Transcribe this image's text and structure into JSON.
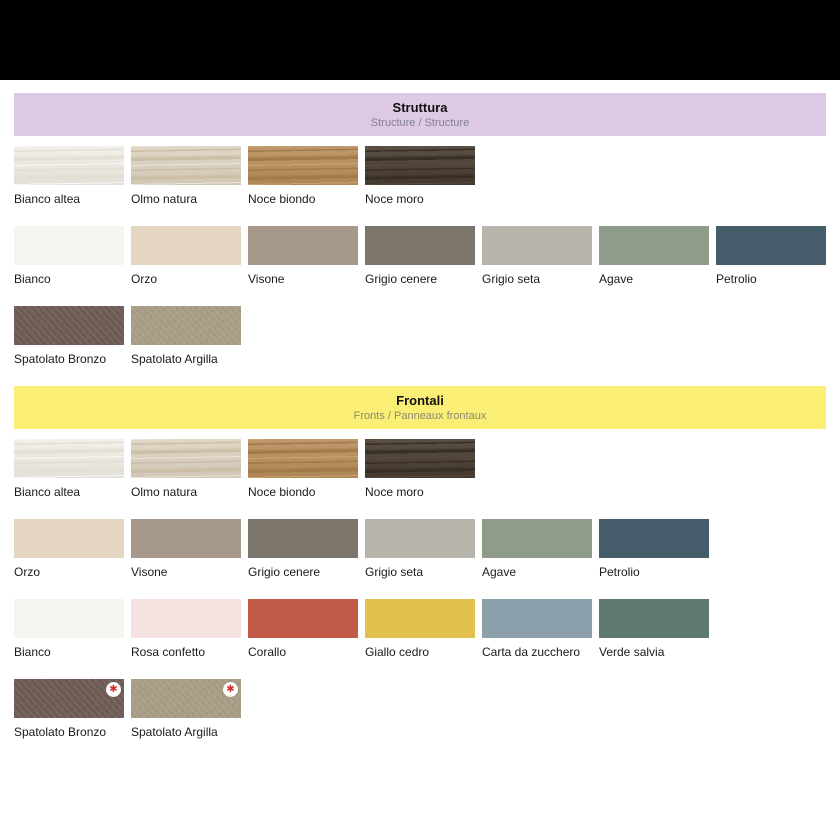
{
  "page": {
    "background": "#ffffff",
    "top_bar_color": "#000000"
  },
  "badge": {
    "glyph": "✱",
    "color": "#d42b26",
    "circle_color": "#ffffff",
    "meaning": "star-marker"
  },
  "sections": [
    {
      "id": "struttura",
      "header": {
        "title": "Struttura",
        "subtitle": "Structure / Structure",
        "background": "#ddc9e4",
        "title_color": "#111111",
        "subtitle_color": "#82808c"
      },
      "rows": [
        {
          "swatches": [
            {
              "label": "Bianco altea",
              "kind": "wood",
              "colors": {
                "base": "#f1eee7",
                "dark": "#e3dfd3",
                "light": "#faf8f3"
              },
              "badge": false
            },
            {
              "label": "Olmo natura",
              "kind": "wood",
              "colors": {
                "base": "#ddd3c1",
                "dark": "#ccbea6",
                "light": "#eae3d6"
              },
              "badge": false
            },
            {
              "label": "Noce biondo",
              "kind": "wood",
              "colors": {
                "base": "#b88e5c",
                "dark": "#a27947",
                "light": "#caa172"
              },
              "badge": false
            },
            {
              "label": "Noce moro",
              "kind": "wood",
              "colors": {
                "base": "#483c31",
                "dark": "#372e24",
                "light": "#58493b"
              },
              "badge": false
            }
          ]
        },
        {
          "swatches": [
            {
              "label": "Bianco",
              "kind": "flat",
              "colors": {
                "base": "#f5f4ee"
              },
              "badge": false
            },
            {
              "label": "Orzo",
              "kind": "flat",
              "colors": {
                "base": "#e4d6c2"
              },
              "badge": false
            },
            {
              "label": "Visone",
              "kind": "flat",
              "colors": {
                "base": "#a79a8c"
              },
              "badge": false
            },
            {
              "label": "Grigio cenere",
              "kind": "flat",
              "colors": {
                "base": "#7b756c"
              },
              "badge": false
            },
            {
              "label": "Grigio seta",
              "kind": "flat",
              "colors": {
                "base": "#b7b4ac"
              },
              "badge": false
            },
            {
              "label": "Agave",
              "kind": "flat",
              "colors": {
                "base": "#8f9c8a"
              },
              "badge": false
            },
            {
              "label": "Petrolio",
              "kind": "flat",
              "colors": {
                "base": "#455c6a"
              },
              "badge": false
            }
          ]
        },
        {
          "swatches": [
            {
              "label": "Spatolato Bronzo",
              "kind": "texture",
              "colors": {
                "base": "#6e5a54",
                "dark": "#61504a",
                "light": "#7b665f"
              },
              "badge": false
            },
            {
              "label": "Spatolato Argilla",
              "kind": "texture",
              "colors": {
                "base": "#a79b84",
                "dark": "#998d76",
                "light": "#b3a791"
              },
              "badge": false
            }
          ]
        }
      ]
    },
    {
      "id": "frontali",
      "header": {
        "title": "Frontali",
        "subtitle": "Fronts / Panneaux frontaux",
        "background": "#faee75",
        "title_color": "#111111",
        "subtitle_color": "#8c8a72"
      },
      "rows": [
        {
          "swatches": [
            {
              "label": "Bianco altea",
              "kind": "wood",
              "colors": {
                "base": "#f1eee7",
                "dark": "#e3dfd3",
                "light": "#faf8f3"
              },
              "badge": false
            },
            {
              "label": "Olmo natura",
              "kind": "wood",
              "colors": {
                "base": "#ddd3c1",
                "dark": "#ccbea6",
                "light": "#eae3d6"
              },
              "badge": false
            },
            {
              "label": "Noce biondo",
              "kind": "wood",
              "colors": {
                "base": "#b88e5c",
                "dark": "#a27947",
                "light": "#caa172"
              },
              "badge": false
            },
            {
              "label": "Noce moro",
              "kind": "wood",
              "colors": {
                "base": "#483c31",
                "dark": "#372e24",
                "light": "#58493b"
              },
              "badge": false
            }
          ]
        },
        {
          "swatches": [
            {
              "label": "Orzo",
              "kind": "flat",
              "colors": {
                "base": "#e4d6c2"
              },
              "badge": false
            },
            {
              "label": "Visone",
              "kind": "flat",
              "colors": {
                "base": "#a79a8c"
              },
              "badge": false
            },
            {
              "label": "Grigio cenere",
              "kind": "flat",
              "colors": {
                "base": "#7b756c"
              },
              "badge": false
            },
            {
              "label": "Grigio seta",
              "kind": "flat",
              "colors": {
                "base": "#b7b4ac"
              },
              "badge": false
            },
            {
              "label": "Agave",
              "kind": "flat",
              "colors": {
                "base": "#8f9c8a"
              },
              "badge": false
            },
            {
              "label": "Petrolio",
              "kind": "flat",
              "colors": {
                "base": "#455c6a"
              },
              "badge": false
            }
          ]
        },
        {
          "swatches": [
            {
              "label": "Bianco",
              "kind": "flat",
              "colors": {
                "base": "#f5f4ee"
              },
              "badge": false
            },
            {
              "label": "Rosa confetto",
              "kind": "flat",
              "colors": {
                "base": "#f6e3e1"
              },
              "badge": false
            },
            {
              "label": "Corallo",
              "kind": "flat",
              "colors": {
                "base": "#c25c49"
              },
              "badge": false
            },
            {
              "label": "Giallo cedro",
              "kind": "flat",
              "colors": {
                "base": "#e1c04d"
              },
              "badge": false
            },
            {
              "label": "Carta da zucchero",
              "kind": "flat",
              "colors": {
                "base": "#8da1ac"
              },
              "badge": false
            },
            {
              "label": "Verde salvia",
              "kind": "flat",
              "colors": {
                "base": "#5e7a6e"
              },
              "badge": false
            }
          ]
        },
        {
          "swatches": [
            {
              "label": "Spatolato Bronzo",
              "kind": "texture",
              "colors": {
                "base": "#6e5a54",
                "dark": "#61504a",
                "light": "#7b665f"
              },
              "badge": true
            },
            {
              "label": "Spatolato Argilla",
              "kind": "texture",
              "colors": {
                "base": "#a79b84",
                "dark": "#998d76",
                "light": "#b3a791"
              },
              "badge": true
            }
          ]
        }
      ]
    }
  ]
}
